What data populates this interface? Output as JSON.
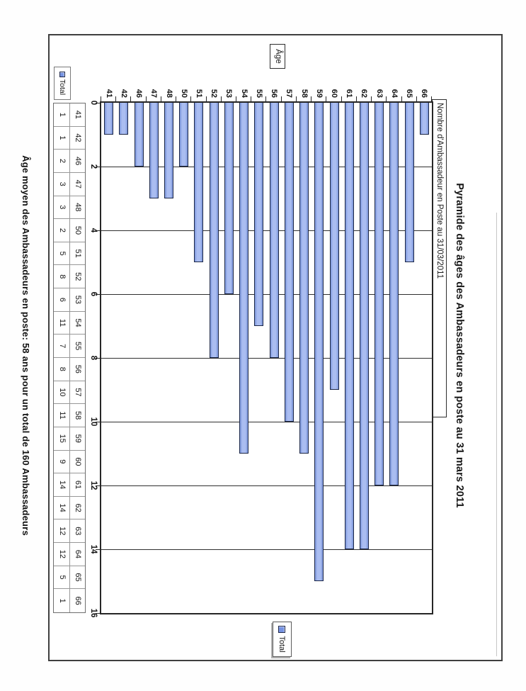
{
  "page": {
    "footer_note": "Âge moyen des Ambassadeurs en poste: 58 ans pour un total de 160 Ambassadeurs"
  },
  "chart_data": {
    "type": "bar",
    "orientation": "horizontal",
    "title": "Pyramide des âges des Ambassadeurs en poste au 31 mars 2011",
    "category_axis_title": "Âge",
    "value_axis_title": "Nombre d'Ambassadeur en Poste au 31/03/2011",
    "categories": [
      "41",
      "42",
      "46",
      "47",
      "48",
      "50",
      "51",
      "52",
      "53",
      "54",
      "55",
      "56",
      "57",
      "58",
      "59",
      "60",
      "61",
      "62",
      "63",
      "64",
      "65",
      "66"
    ],
    "series": [
      {
        "name": "Total",
        "values": [
          1,
          1,
          2,
          3,
          3,
          2,
          5,
          8,
          6,
          11,
          7,
          8,
          10,
          11,
          15,
          9,
          14,
          14,
          12,
          12,
          5,
          1
        ]
      }
    ],
    "value_axis": {
      "min": 0,
      "max": 16,
      "major_unit": 2,
      "tick_labels": [
        "0",
        "2",
        "4",
        "6",
        "8",
        "10",
        "12",
        "14",
        "16"
      ]
    },
    "legend": {
      "position": "right",
      "entries": [
        "Total"
      ]
    },
    "grid": true,
    "data_table": true,
    "layout": {
      "page_rotation_deg": 90
    },
    "colors": {
      "bar_fill": "#8fa8e6",
      "bar_border": "#1c2747",
      "grid_line": "#2f2f2f"
    }
  }
}
